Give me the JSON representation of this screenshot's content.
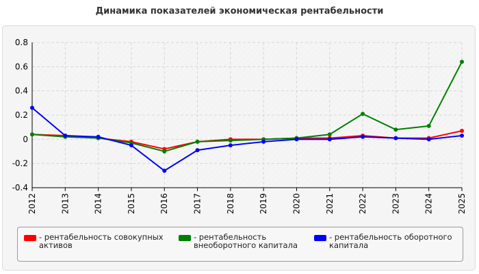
{
  "chart_data": {
    "type": "line",
    "title": "Динамика показателей экономическая рентабельности",
    "categories": [
      "2012",
      "2013",
      "2014",
      "2015",
      "2016",
      "2017",
      "2018",
      "2019",
      "2020",
      "2021",
      "2022",
      "2023",
      "2024",
      "2025"
    ],
    "ylim": [
      -0.4,
      0.8
    ],
    "yticks": [
      -0.4,
      -0.2,
      0,
      0.2,
      0.4,
      0.6,
      0.8
    ],
    "ytick_labels": [
      "-0.4",
      "-0.2",
      "0",
      "0.2",
      "0.4",
      "0.6",
      "0.8"
    ],
    "grid": true,
    "legend_position": "bottom",
    "series": [
      {
        "name": "- рентабельность совокупных активов",
        "color": "#ff0000",
        "values": [
          0.04,
          0.03,
          0.01,
          -0.02,
          -0.08,
          -0.02,
          0.0,
          0.0,
          0.01,
          0.01,
          0.03,
          0.01,
          0.01,
          0.07
        ]
      },
      {
        "name": "- рентабельность внеоборотного капитала",
        "color": "#008000",
        "values": [
          0.04,
          0.02,
          0.01,
          -0.03,
          -0.1,
          -0.02,
          -0.01,
          0.0,
          0.01,
          0.04,
          0.21,
          0.08,
          0.11,
          0.64
        ]
      },
      {
        "name": "- рентабельность оборотного капитала",
        "color": "#0000ff",
        "values": [
          0.26,
          0.03,
          0.02,
          -0.05,
          -0.26,
          -0.09,
          -0.05,
          -0.02,
          0.0,
          0.0,
          0.02,
          0.01,
          0.0,
          0.03
        ]
      }
    ]
  }
}
